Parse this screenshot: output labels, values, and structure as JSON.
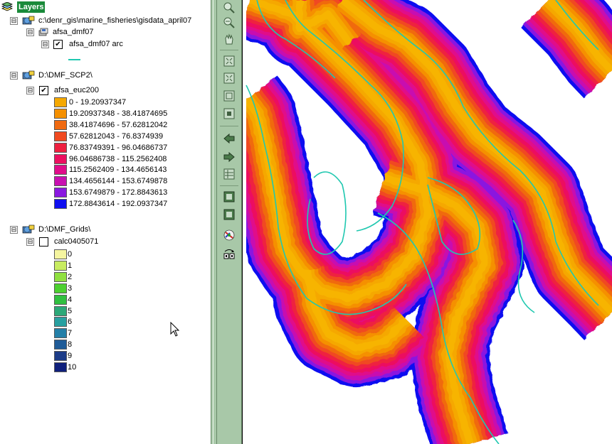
{
  "toc": {
    "root": {
      "label": "Layers"
    },
    "groups": [
      {
        "label": "c:\\denr_gis\\marine_fisheries\\gisdata_april07",
        "expander": "⊟",
        "dataset": {
          "label": "afsa_dmf07"
        },
        "layer": {
          "label": "afsa_dmf07 arc",
          "checked": true
        }
      },
      {
        "label": "D:\\DMF_SCP2\\",
        "expander": "⊟",
        "layer": {
          "label": "afsa_euc200",
          "checked": true
        },
        "classes": [
          {
            "label": "0 - 19.20937347",
            "color": "#f5a800"
          },
          {
            "label": "19.20937348 - 38.41874695",
            "color": "#f59000"
          },
          {
            "label": "38.41874696 - 57.62812042",
            "color": "#f06a10"
          },
          {
            "label": "57.62812043 - 76.8374939",
            "color": "#f04a20"
          },
          {
            "label": "76.83749391 - 96.04686737",
            "color": "#ee2040"
          },
          {
            "label": "96.04686738 - 115.2562408",
            "color": "#ec1060"
          },
          {
            "label": "115.2562409 - 134.4656143",
            "color": "#e00c8a"
          },
          {
            "label": "134.4656144 - 153.6749878",
            "color": "#c810b0"
          },
          {
            "label": "153.6749879 - 172.8843613",
            "color": "#8a18e0"
          },
          {
            "label": "172.8843614 - 192.0937347",
            "color": "#1010f0"
          }
        ]
      },
      {
        "label": "D:\\DMF_Grids\\",
        "expander": "⊟",
        "layer": {
          "label": "calc0405071",
          "checked": false
        },
        "classes": [
          {
            "label": "0",
            "color": "#f5f5a0"
          },
          {
            "label": "1",
            "color": "#c8ec60"
          },
          {
            "label": "2",
            "color": "#90e040"
          },
          {
            "label": "3",
            "color": "#4cd030"
          },
          {
            "label": "4",
            "color": "#30c040"
          },
          {
            "label": "5",
            "color": "#2ca878"
          },
          {
            "label": "6",
            "color": "#28a0a0"
          },
          {
            "label": "7",
            "color": "#2480a8"
          },
          {
            "label": "8",
            "color": "#205c98"
          },
          {
            "label": "9",
            "color": "#1c3c88"
          },
          {
            "label": "10",
            "color": "#10207c"
          }
        ]
      }
    ]
  },
  "toolbar": {
    "tools": [
      "zoom-in-icon",
      "zoom-out-icon",
      "pan-icon",
      "fixed-zoom-in-icon",
      "fixed-zoom-out-icon",
      "full-extent-icon",
      "zoom-selected-icon",
      "back-extent-icon",
      "forward-extent-icon",
      "layer-extent-icon",
      "select-features-icon",
      "clear-selection-icon",
      "identify-icon",
      "measure-icon"
    ]
  },
  "colors": {
    "panel": "#a8c8a8",
    "contour": "#20c8b0",
    "map_bg": "#ffffff"
  }
}
